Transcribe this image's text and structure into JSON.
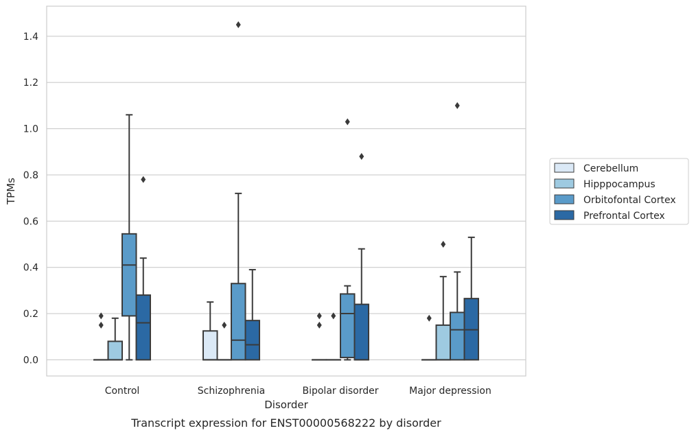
{
  "caption": "Transcript expression for ENST00000568222 by disorder",
  "chart_data": {
    "type": "box",
    "title": "",
    "xlabel": "Disorder",
    "ylabel": "TPMs",
    "ylim": [
      -0.07,
      1.53
    ],
    "yticks": [
      "0.0",
      "0.2",
      "0.4",
      "0.6",
      "0.8",
      "1.0",
      "1.2",
      "1.4"
    ],
    "grid": true,
    "legend_position": "right",
    "categories": [
      "Control",
      "Schizophrenia",
      "Bipolar disorder",
      "Major depression"
    ],
    "series": [
      {
        "name": "Cerebellum",
        "color": "#dbe9f6",
        "boxes": [
          {
            "q1": 0.0,
            "median": 0.0,
            "q3": 0.0,
            "whisker_low": 0.0,
            "whisker_high": 0.0,
            "outliers": [
              0.15,
              0.19
            ]
          },
          {
            "q1": 0.0,
            "median": 0.0,
            "q3": 0.125,
            "whisker_low": 0.0,
            "whisker_high": 0.25,
            "outliers": []
          },
          {
            "q1": 0.0,
            "median": 0.0,
            "q3": 0.0,
            "whisker_low": 0.0,
            "whisker_high": 0.0,
            "outliers": [
              0.15,
              0.19
            ]
          },
          {
            "q1": 0.0,
            "median": 0.0,
            "q3": 0.0,
            "whisker_low": 0.0,
            "whisker_high": 0.0,
            "outliers": [
              0.18
            ]
          }
        ]
      },
      {
        "name": "Hipppocampus",
        "color": "#9ecae1",
        "boxes": [
          {
            "q1": 0.0,
            "median": 0.0,
            "q3": 0.08,
            "whisker_low": 0.0,
            "whisker_high": 0.18,
            "outliers": []
          },
          {
            "q1": 0.0,
            "median": 0.0,
            "q3": 0.0,
            "whisker_low": 0.0,
            "whisker_high": 0.0,
            "outliers": [
              0.15
            ]
          },
          {
            "q1": 0.0,
            "median": 0.0,
            "q3": 0.0,
            "whisker_low": 0.0,
            "whisker_high": 0.0,
            "outliers": [
              0.19
            ]
          },
          {
            "q1": 0.0,
            "median": 0.0,
            "q3": 0.15,
            "whisker_low": 0.0,
            "whisker_high": 0.36,
            "outliers": [
              0.5
            ]
          }
        ]
      },
      {
        "name": "Orbitofontal Cortex",
        "color": "#5a9bc9",
        "boxes": [
          {
            "q1": 0.19,
            "median": 0.41,
            "q3": 0.545,
            "whisker_low": 0.0,
            "whisker_high": 1.06,
            "outliers": []
          },
          {
            "q1": 0.0,
            "median": 0.085,
            "q3": 0.33,
            "whisker_low": 0.0,
            "whisker_high": 0.72,
            "outliers": [
              1.45
            ]
          },
          {
            "q1": 0.01,
            "median": 0.2,
            "q3": 0.285,
            "whisker_low": 0.0,
            "whisker_high": 0.32,
            "outliers": [
              1.03
            ]
          },
          {
            "q1": 0.0,
            "median": 0.13,
            "q3": 0.205,
            "whisker_low": 0.0,
            "whisker_high": 0.38,
            "outliers": [
              1.1
            ]
          }
        ]
      },
      {
        "name": "Prefrontal Cortex",
        "color": "#2b69a4",
        "boxes": [
          {
            "q1": 0.0,
            "median": 0.16,
            "q3": 0.28,
            "whisker_low": 0.0,
            "whisker_high": 0.44,
            "outliers": [
              0.78
            ]
          },
          {
            "q1": 0.0,
            "median": 0.065,
            "q3": 0.17,
            "whisker_low": 0.0,
            "whisker_high": 0.39,
            "outliers": []
          },
          {
            "q1": 0.0,
            "median": 0.0,
            "q3": 0.24,
            "whisker_low": 0.0,
            "whisker_high": 0.48,
            "outliers": [
              0.88
            ]
          },
          {
            "q1": 0.0,
            "median": 0.13,
            "q3": 0.265,
            "whisker_low": 0.0,
            "whisker_high": 0.53,
            "outliers": []
          }
        ]
      }
    ]
  }
}
